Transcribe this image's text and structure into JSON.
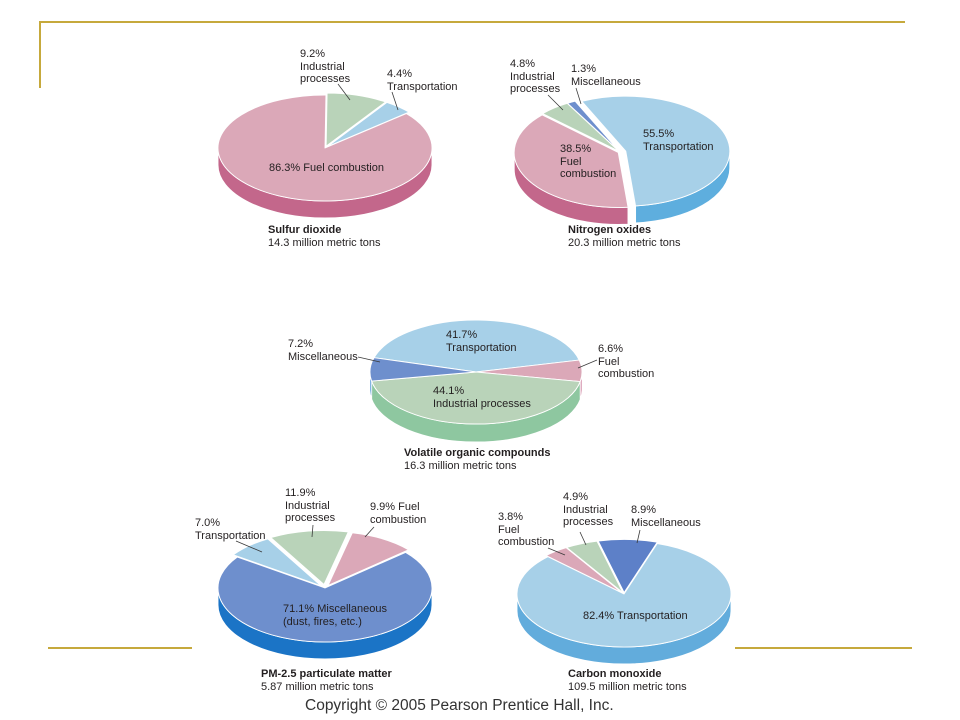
{
  "slide": {
    "copyright": "Copyright © 2005 Pearson Prentice Hall, Inc.",
    "rule_color": "#c6a93c"
  },
  "chart_data": [
    {
      "type": "pie",
      "title": "Sulfur dioxide",
      "subtitle": "14.3 million metric tons",
      "slices": [
        {
          "label": "9.2%\nIndustrial\nprocesses",
          "value": 9.2,
          "color": "#b9d3b9",
          "side_color": "#8ec7a0"
        },
        {
          "label": "4.4%\nTransportation",
          "value": 4.4,
          "color": "#a7d0e8",
          "side_color": "#5eaede"
        },
        {
          "label": "86.3% Fuel combustion",
          "value": 86.3,
          "color": "#dba8b8",
          "side_color": "#c3678b"
        }
      ]
    },
    {
      "type": "pie",
      "title": "Nitrogen oxides",
      "subtitle": "20.3 million metric tons",
      "slices": [
        {
          "label": "55.5%\nTransportation",
          "value": 55.5,
          "color": "#a7d0e8",
          "side_color": "#5eaede"
        },
        {
          "label": "38.5%\nFuel\ncombustion",
          "value": 38.5,
          "color": "#dba8b8",
          "side_color": "#c3678b"
        },
        {
          "label": "4.8%\nIndustrial\nprocesses",
          "value": 4.8,
          "color": "#b9d3b9",
          "side_color": "#8ec7a0"
        },
        {
          "label": "1.3%\nMiscellaneous",
          "value": 1.3,
          "color": "#6e8fcd",
          "side_color": "#1b74c6"
        }
      ]
    },
    {
      "type": "pie",
      "title": "Volatile organic compounds",
      "subtitle": "16.3 million metric tons",
      "slices": [
        {
          "label": "41.7%\nTransportation",
          "value": 41.7,
          "color": "#a7d0e8",
          "side_color": "#5eaede"
        },
        {
          "label": "6.6%\nFuel\ncombustion",
          "value": 6.6,
          "color": "#dba8b8",
          "side_color": "#c3678b"
        },
        {
          "label": "44.1%\nIndustrial processes",
          "value": 44.1,
          "color": "#b9d3b9",
          "side_color": "#8ec7a0"
        },
        {
          "label": "7.2%\nMiscellaneous",
          "value": 7.2,
          "color": "#6e8fcd",
          "side_color": "#1b74c6"
        }
      ]
    },
    {
      "type": "pie",
      "title": "PM-2.5 particulate matter",
      "subtitle": "5.87 million metric tons",
      "slices": [
        {
          "label": "7.0%\nTransportation",
          "value": 7.0,
          "color": "#a7d0e8",
          "side_color": "#5eaede"
        },
        {
          "label": "11.9%\nIndustrial\nprocesses",
          "value": 11.9,
          "color": "#b9d3b9",
          "side_color": "#8ec7a0"
        },
        {
          "label": "9.9% Fuel\ncombustion",
          "value": 9.9,
          "color": "#dba8b8",
          "side_color": "#c3678b"
        },
        {
          "label": "71.1% Miscellaneous\n(dust, fires, etc.)",
          "value": 71.1,
          "color": "#6e8fcd",
          "side_color": "#1b74c6"
        }
      ]
    },
    {
      "type": "pie",
      "title": "Carbon monoxide",
      "subtitle": "109.5 million metric tons",
      "slices": [
        {
          "label": "3.8%\nFuel\ncombustion",
          "value": 3.8,
          "color": "#dba8b8",
          "side_color": "#c3678b"
        },
        {
          "label": "4.9%\nIndustrial\nprocesses",
          "value": 4.9,
          "color": "#b9d3b9",
          "side_color": "#8ec7a0"
        },
        {
          "label": "8.9%\nMiscellaneous",
          "value": 8.9,
          "color": "#5d80c8",
          "side_color": "#1b74c6"
        },
        {
          "label": "82.4% Transportation",
          "value": 82.4,
          "color": "#a7d0e8",
          "side_color": "#62acdc"
        }
      ]
    }
  ]
}
